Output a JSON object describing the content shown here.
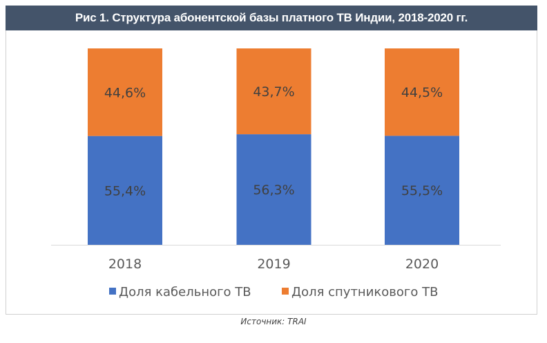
{
  "chart_data": {
    "type": "bar",
    "stacked": true,
    "title": "Рис 1. Структура абонентской базы платного ТВ Индии, 2018-2020 гг.",
    "categories": [
      "2018",
      "2019",
      "2020"
    ],
    "series": [
      {
        "name": "Доля кабельного ТВ",
        "color": "#4472c4",
        "values": [
          55.4,
          56.3,
          55.5
        ],
        "labels": [
          "55,4%",
          "56,3%",
          "55,5%"
        ]
      },
      {
        "name": "Доля спутникового ТВ",
        "color": "#ed7d31",
        "values": [
          44.6,
          43.7,
          44.5
        ],
        "labels": [
          "44,6%",
          "43,7%",
          "44,5%"
        ]
      }
    ],
    "ylim": [
      0,
      100
    ],
    "xlabel": "",
    "ylabel": "",
    "grid": false,
    "legend_position": "bottom"
  },
  "source": "Источник: TRAI"
}
